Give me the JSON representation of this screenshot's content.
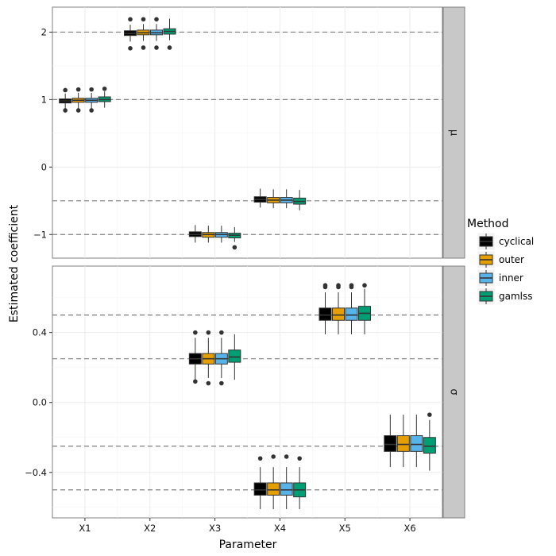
{
  "chart_data": {
    "type": "boxplot",
    "xlabel": "Parameter",
    "ylabel": "Estimated coefficient",
    "categories": [
      "X1",
      "X2",
      "X3",
      "X4",
      "X5",
      "X6"
    ],
    "legend": {
      "title": "Method",
      "position": "right",
      "entries": [
        {
          "name": "cyclical",
          "color": "#000000"
        },
        {
          "name": "outer",
          "color": "#e69f00"
        },
        {
          "name": "inner",
          "color": "#56b4e9"
        },
        {
          "name": "gamlss",
          "color": "#009e73"
        }
      ]
    },
    "panels": [
      {
        "strip": "μ",
        "ylim": [
          -1.35,
          2.37
        ],
        "yticks": [
          -1,
          0,
          1,
          2
        ],
        "ytick_labels": [
          "−1",
          "0",
          "1",
          "2"
        ],
        "reference_lines": [
          2,
          1,
          -0.5,
          -1
        ],
        "boxes": [
          {
            "category": "X1",
            "method": "cyclical",
            "whisker_low": 0.86,
            "q1": 0.95,
            "median": 0.98,
            "q3": 1.01,
            "whisker_high": 1.09,
            "outliers": [
              0.84,
              1.14
            ]
          },
          {
            "category": "X1",
            "method": "outer",
            "whisker_low": 0.87,
            "q1": 0.96,
            "median": 0.99,
            "q3": 1.02,
            "whisker_high": 1.1,
            "outliers": [
              0.84,
              1.15
            ]
          },
          {
            "category": "X1",
            "method": "inner",
            "whisker_low": 0.87,
            "q1": 0.96,
            "median": 0.99,
            "q3": 1.02,
            "whisker_high": 1.1,
            "outliers": [
              0.84,
              1.15
            ]
          },
          {
            "category": "X1",
            "method": "gamlss",
            "whisker_low": 0.88,
            "q1": 0.97,
            "median": 1.0,
            "q3": 1.04,
            "whisker_high": 1.12,
            "outliers": [
              1.16
            ]
          },
          {
            "category": "X2",
            "method": "cyclical",
            "whisker_low": 1.86,
            "q1": 1.95,
            "median": 1.98,
            "q3": 2.02,
            "whisker_high": 2.11,
            "outliers": [
              1.76,
              2.19
            ]
          },
          {
            "category": "X2",
            "method": "outer",
            "whisker_low": 1.87,
            "q1": 1.96,
            "median": 1.99,
            "q3": 2.03,
            "whisker_high": 2.12,
            "outliers": [
              1.77,
              2.19
            ]
          },
          {
            "category": "X2",
            "method": "inner",
            "whisker_low": 1.87,
            "q1": 1.96,
            "median": 1.99,
            "q3": 2.03,
            "whisker_high": 2.12,
            "outliers": [
              1.77,
              2.19
            ]
          },
          {
            "category": "X2",
            "method": "gamlss",
            "whisker_low": 1.88,
            "q1": 1.97,
            "median": 2.01,
            "q3": 2.05,
            "whisker_high": 2.2,
            "outliers": [
              1.77
            ]
          },
          {
            "category": "X3",
            "method": "cyclical",
            "whisker_low": -1.12,
            "q1": -1.03,
            "median": -1.0,
            "q3": -0.96,
            "whisker_high": -0.86,
            "outliers": []
          },
          {
            "category": "X3",
            "method": "outer",
            "whisker_low": -1.12,
            "q1": -1.04,
            "median": -1.0,
            "q3": -0.97,
            "whisker_high": -0.87,
            "outliers": []
          },
          {
            "category": "X3",
            "method": "inner",
            "whisker_low": -1.12,
            "q1": -1.04,
            "median": -1.0,
            "q3": -0.97,
            "whisker_high": -0.87,
            "outliers": []
          },
          {
            "category": "X3",
            "method": "gamlss",
            "whisker_low": -1.11,
            "q1": -1.05,
            "median": -1.01,
            "q3": -0.98,
            "whisker_high": -0.89,
            "outliers": [
              -1.19
            ]
          },
          {
            "category": "X4",
            "method": "cyclical",
            "whisker_low": -0.6,
            "q1": -0.52,
            "median": -0.48,
            "q3": -0.44,
            "whisker_high": -0.32,
            "outliers": []
          },
          {
            "category": "X4",
            "method": "outer",
            "whisker_low": -0.61,
            "q1": -0.53,
            "median": -0.49,
            "q3": -0.45,
            "whisker_high": -0.33,
            "outliers": []
          },
          {
            "category": "X4",
            "method": "inner",
            "whisker_low": -0.61,
            "q1": -0.53,
            "median": -0.49,
            "q3": -0.45,
            "whisker_high": -0.33,
            "outliers": []
          },
          {
            "category": "X4",
            "method": "gamlss",
            "whisker_low": -0.64,
            "q1": -0.55,
            "median": -0.51,
            "q3": -0.46,
            "whisker_high": -0.34,
            "outliers": []
          }
        ]
      },
      {
        "strip": "σ",
        "ylim": [
          -0.66,
          0.78
        ],
        "yticks": [
          -0.4,
          0.0,
          0.4
        ],
        "ytick_labels": [
          "−0.4",
          "0.0",
          "0.4"
        ],
        "reference_lines": [
          0.5,
          0.25,
          -0.25,
          -0.5
        ],
        "boxes": [
          {
            "category": "X3",
            "method": "cyclical",
            "whisker_low": 0.13,
            "q1": 0.22,
            "median": 0.25,
            "q3": 0.28,
            "whisker_high": 0.37,
            "outliers": [
              0.12,
              0.4
            ]
          },
          {
            "category": "X3",
            "method": "outer",
            "whisker_low": 0.14,
            "q1": 0.22,
            "median": 0.25,
            "q3": 0.28,
            "whisker_high": 0.37,
            "outliers": [
              0.11,
              0.4
            ]
          },
          {
            "category": "X3",
            "method": "inner",
            "whisker_low": 0.14,
            "q1": 0.22,
            "median": 0.25,
            "q3": 0.28,
            "whisker_high": 0.37,
            "outliers": [
              0.11,
              0.4
            ]
          },
          {
            "category": "X3",
            "method": "gamlss",
            "whisker_low": 0.13,
            "q1": 0.23,
            "median": 0.26,
            "q3": 0.3,
            "whisker_high": 0.39,
            "outliers": []
          },
          {
            "category": "X4",
            "method": "cyclical",
            "whisker_low": -0.61,
            "q1": -0.53,
            "median": -0.5,
            "q3": -0.46,
            "whisker_high": -0.37,
            "outliers": [
              -0.32
            ]
          },
          {
            "category": "X4",
            "method": "outer",
            "whisker_low": -0.61,
            "q1": -0.53,
            "median": -0.5,
            "q3": -0.46,
            "whisker_high": -0.37,
            "outliers": [
              -0.31
            ]
          },
          {
            "category": "X4",
            "method": "inner",
            "whisker_low": -0.61,
            "q1": -0.53,
            "median": -0.5,
            "q3": -0.46,
            "whisker_high": -0.37,
            "outliers": [
              -0.31
            ]
          },
          {
            "category": "X4",
            "method": "gamlss",
            "whisker_low": -0.61,
            "q1": -0.54,
            "median": -0.5,
            "q3": -0.46,
            "whisker_high": -0.37,
            "outliers": [
              -0.32
            ]
          },
          {
            "category": "X5",
            "method": "cyclical",
            "whisker_low": 0.39,
            "q1": 0.47,
            "median": 0.5,
            "q3": 0.54,
            "whisker_high": 0.63,
            "outliers": [
              0.66,
              0.67
            ]
          },
          {
            "category": "X5",
            "method": "outer",
            "whisker_low": 0.39,
            "q1": 0.47,
            "median": 0.5,
            "q3": 0.54,
            "whisker_high": 0.63,
            "outliers": [
              0.66,
              0.67
            ]
          },
          {
            "category": "X5",
            "method": "inner",
            "whisker_low": 0.39,
            "q1": 0.47,
            "median": 0.5,
            "q3": 0.54,
            "whisker_high": 0.63,
            "outliers": [
              0.66,
              0.67
            ]
          },
          {
            "category": "X5",
            "method": "gamlss",
            "whisker_low": 0.39,
            "q1": 0.47,
            "median": 0.51,
            "q3": 0.55,
            "whisker_high": 0.65,
            "outliers": [
              0.67
            ]
          },
          {
            "category": "X6",
            "method": "cyclical",
            "whisker_low": -0.37,
            "q1": -0.28,
            "median": -0.24,
            "q3": -0.19,
            "whisker_high": -0.07,
            "outliers": []
          },
          {
            "category": "X6",
            "method": "outer",
            "whisker_low": -0.37,
            "q1": -0.28,
            "median": -0.24,
            "q3": -0.19,
            "whisker_high": -0.07,
            "outliers": []
          },
          {
            "category": "X6",
            "method": "inner",
            "whisker_low": -0.37,
            "q1": -0.28,
            "median": -0.24,
            "q3": -0.19,
            "whisker_high": -0.07,
            "outliers": []
          },
          {
            "category": "X6",
            "method": "gamlss",
            "whisker_low": -0.39,
            "q1": -0.29,
            "median": -0.25,
            "q3": -0.2,
            "whisker_high": -0.1,
            "outliers": [
              -0.07
            ]
          }
        ]
      }
    ]
  }
}
